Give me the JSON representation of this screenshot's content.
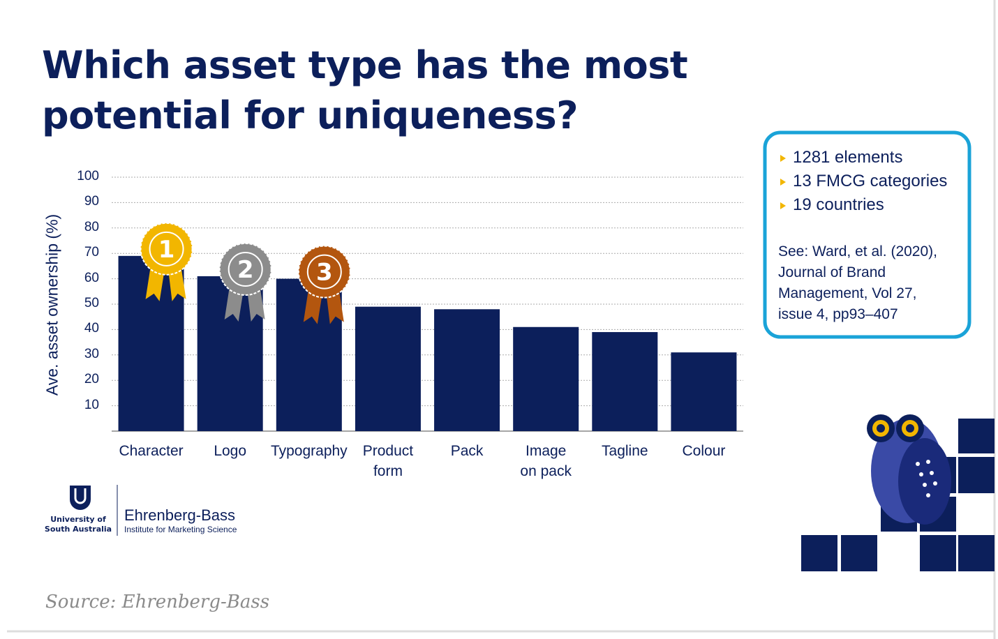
{
  "chart_data": {
    "type": "bar",
    "title": "Which asset type has the most\npotential for uniqueness?",
    "y_label": "Ave. asset ownership (%)",
    "categories": [
      "Character",
      "Logo",
      "Typography",
      "Product\nform",
      "Pack",
      "Image\non pack",
      "Tagline",
      "Colour"
    ],
    "values": [
      69,
      61,
      60,
      49,
      48,
      41,
      39,
      31
    ],
    "color": "#0c1f5b",
    "ylim": [
      0,
      100
    ],
    "yticks": [
      10,
      20,
      30,
      40,
      50,
      60,
      70,
      80,
      90,
      100
    ],
    "grid": true,
    "rank_badges": [
      "1",
      "2",
      "3"
    ]
  },
  "info_box": {
    "bullets": [
      "1281 elements",
      "13 FMCG categories",
      "19 countries"
    ],
    "reference": "See: Ward, et al. (2020),\nJournal of Brand\nManagement, Vol 27,\nissue 4, pp93–407"
  },
  "logo": {
    "university": "University of\nSouth Australia",
    "institute": "Ehrenberg-Bass",
    "institute_subtitle": "Institute for Marketing Science"
  },
  "source": "Source: Ehrenberg-Bass"
}
